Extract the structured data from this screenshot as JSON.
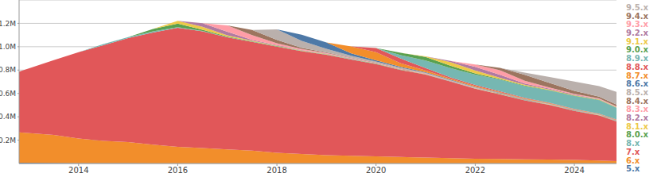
{
  "chart_data": {
    "type": "area",
    "stacked": true,
    "grid": true,
    "legend": "right",
    "x": [
      2012.8,
      2013.5,
      2014,
      2014.5,
      2015,
      2015.5,
      2016,
      2016.5,
      2017,
      2017.5,
      2018,
      2018.5,
      2019,
      2019.5,
      2020,
      2020.5,
      2021,
      2021.5,
      2022,
      2022.5,
      2023,
      2023.5,
      2024,
      2024.5,
      2024.85
    ],
    "xlim": [
      2012.8,
      2024.85
    ],
    "xticks": [
      2014,
      2016,
      2018,
      2020,
      2022,
      2024
    ],
    "ylim": [
      0,
      1400000
    ],
    "yticks": [
      {
        "value": 200000,
        "label": "0.2M"
      },
      {
        "value": 400000,
        "label": "0.4M"
      },
      {
        "value": 600000,
        "label": "0.6M"
      },
      {
        "value": 800000,
        "label": "0.8M"
      },
      {
        "value": 1000000,
        "label": "1.0M"
      },
      {
        "value": 1200000,
        "label": "1.2M"
      }
    ],
    "series": [
      {
        "name": "5.x",
        "color": "#4e79a7",
        "values": [
          6000,
          5000,
          4000,
          3000,
          3000,
          2000,
          2000,
          2000,
          1000,
          1000,
          1000,
          1000,
          1000,
          1000,
          1000,
          1000,
          1000,
          1000,
          1000,
          1000,
          1000,
          1000,
          1000,
          1000,
          1000
        ]
      },
      {
        "name": "6.x",
        "color": "#f28e2b",
        "values": [
          260000,
          240000,
          210000,
          190000,
          180000,
          160000,
          140000,
          130000,
          120000,
          110000,
          90000,
          80000,
          70000,
          65000,
          60000,
          55000,
          50000,
          45000,
          40000,
          38000,
          35000,
          33000,
          30000,
          25000,
          20000
        ]
      },
      {
        "name": "7.x",
        "color": "#e15759",
        "values": [
          520000,
          640000,
          740000,
          820000,
          890000,
          960000,
          1020000,
          1000000,
          960000,
          930000,
          910000,
          880000,
          860000,
          825000,
          790000,
          745000,
          710000,
          655000,
          600000,
          552000,
          505000,
          467000,
          420000,
          385000,
          340000
        ]
      },
      {
        "name": "8.x",
        "color": "#76b7b2",
        "values": [
          0,
          0,
          0,
          10000,
          10000,
          10000,
          5000,
          3000,
          2000,
          2000,
          2000,
          2000,
          2000,
          2000,
          1000,
          1000,
          1000,
          1000,
          1000,
          1000,
          1000,
          1000,
          1000,
          1000,
          1000
        ]
      },
      {
        "name": "8.0.x",
        "color": "#59a14f",
        "values": [
          0,
          0,
          0,
          0,
          0,
          20000,
          30000,
          10000,
          5000,
          3000,
          2000,
          2000,
          2000,
          2000,
          2000,
          1000,
          1000,
          1000,
          1000,
          1000,
          1000,
          1000,
          1000,
          1000,
          1000
        ]
      },
      {
        "name": "8.1.x",
        "color": "#edc948",
        "values": [
          0,
          0,
          0,
          0,
          0,
          0,
          25000,
          25000,
          10000,
          5000,
          4000,
          3000,
          3000,
          2000,
          2000,
          2000,
          2000,
          1000,
          1000,
          1000,
          1000,
          1000,
          1000,
          1000,
          1000
        ]
      },
      {
        "name": "8.2.x",
        "color": "#b07aa1",
        "values": [
          0,
          0,
          0,
          0,
          0,
          0,
          0,
          32000,
          30000,
          8000,
          5000,
          4000,
          3000,
          3000,
          2000,
          2000,
          2000,
          1000,
          1000,
          1000,
          1000,
          1000,
          1000,
          1000,
          1000
        ]
      },
      {
        "name": "8.3.x",
        "color": "#ff9da7",
        "values": [
          0,
          0,
          0,
          0,
          0,
          0,
          0,
          0,
          55000,
          40000,
          15000,
          8000,
          5000,
          4000,
          3000,
          3000,
          2000,
          2000,
          2000,
          2000,
          1000,
          1000,
          1000,
          1000,
          1000
        ]
      },
      {
        "name": "8.4.x",
        "color": "#9c755f",
        "values": [
          0,
          0,
          0,
          0,
          0,
          0,
          0,
          0,
          0,
          44000,
          30000,
          10000,
          6000,
          4000,
          3000,
          3000,
          2000,
          2000,
          2000,
          2000,
          2000,
          1000,
          1000,
          1000,
          1000
        ]
      },
      {
        "name": "8.5.x",
        "color": "#bab0ac",
        "values": [
          0,
          0,
          0,
          0,
          0,
          0,
          0,
          0,
          0,
          0,
          89000,
          60000,
          30000,
          15000,
          10000,
          8000,
          6000,
          5000,
          4000,
          4000,
          3000,
          3000,
          2000,
          2000,
          2000
        ]
      },
      {
        "name": "8.6.x",
        "color": "#4e79a7",
        "values": [
          0,
          0,
          0,
          0,
          0,
          0,
          0,
          0,
          0,
          0,
          0,
          52000,
          55000,
          20000,
          10000,
          7000,
          5000,
          4000,
          3000,
          3000,
          2000,
          2000,
          2000,
          2000,
          2000
        ]
      },
      {
        "name": "8.7.x",
        "color": "#f28e2b",
        "values": [
          0,
          0,
          0,
          0,
          0,
          0,
          0,
          0,
          0,
          0,
          0,
          0,
          0,
          60000,
          70000,
          30000,
          15000,
          10000,
          8000,
          6000,
          5000,
          4000,
          3000,
          3000,
          3000
        ]
      },
      {
        "name": "8.8.x",
        "color": "#e15759",
        "values": [
          0,
          0,
          0,
          0,
          0,
          0,
          0,
          0,
          0,
          0,
          0,
          0,
          0,
          0,
          35000,
          40000,
          20000,
          10000,
          8000,
          6000,
          5000,
          4000,
          4000,
          3000,
          3000
        ]
      },
      {
        "name": "8.9.x",
        "color": "#76b7b2",
        "values": [
          0,
          0,
          0,
          0,
          0,
          0,
          0,
          0,
          0,
          0,
          0,
          0,
          0,
          0,
          0,
          30000,
          65000,
          80000,
          90000,
          100000,
          100000,
          105000,
          110000,
          115000,
          100000
        ]
      },
      {
        "name": "9.0.x",
        "color": "#59a14f",
        "values": [
          0,
          0,
          0,
          0,
          0,
          0,
          0,
          0,
          0,
          0,
          0,
          0,
          0,
          0,
          0,
          20000,
          30000,
          20000,
          10000,
          6000,
          5000,
          4000,
          3000,
          3000,
          2000
        ]
      },
      {
        "name": "9.1.x",
        "color": "#edc948",
        "values": [
          0,
          0,
          0,
          0,
          0,
          0,
          0,
          0,
          0,
          0,
          0,
          0,
          0,
          0,
          0,
          0,
          5000,
          30000,
          25000,
          10000,
          6000,
          5000,
          4000,
          3000,
          3000
        ]
      },
      {
        "name": "9.2.x",
        "color": "#b07aa1",
        "values": [
          0,
          0,
          0,
          0,
          0,
          0,
          0,
          0,
          0,
          0,
          0,
          0,
          0,
          0,
          0,
          0,
          0,
          10000,
          30000,
          25000,
          10000,
          6000,
          5000,
          4000,
          3000
        ]
      },
      {
        "name": "9.3.x",
        "color": "#ff9da7",
        "values": [
          0,
          0,
          0,
          0,
          0,
          0,
          0,
          0,
          0,
          0,
          0,
          0,
          0,
          0,
          0,
          0,
          0,
          0,
          20000,
          40000,
          25000,
          10000,
          6000,
          5000,
          4000
        ]
      },
      {
        "name": "9.4.x",
        "color": "#9c755f",
        "values": [
          0,
          0,
          0,
          0,
          0,
          0,
          0,
          0,
          0,
          0,
          0,
          0,
          0,
          0,
          0,
          0,
          0,
          0,
          0,
          20000,
          50000,
          40000,
          25000,
          15000,
          15000
        ]
      },
      {
        "name": "9.5.x",
        "color": "#bab0ac",
        "values": [
          0,
          0,
          0,
          0,
          0,
          0,
          0,
          0,
          0,
          0,
          0,
          0,
          0,
          0,
          0,
          0,
          0,
          0,
          0,
          0,
          20000,
          50000,
          80000,
          90000,
          110000
        ]
      }
    ]
  }
}
